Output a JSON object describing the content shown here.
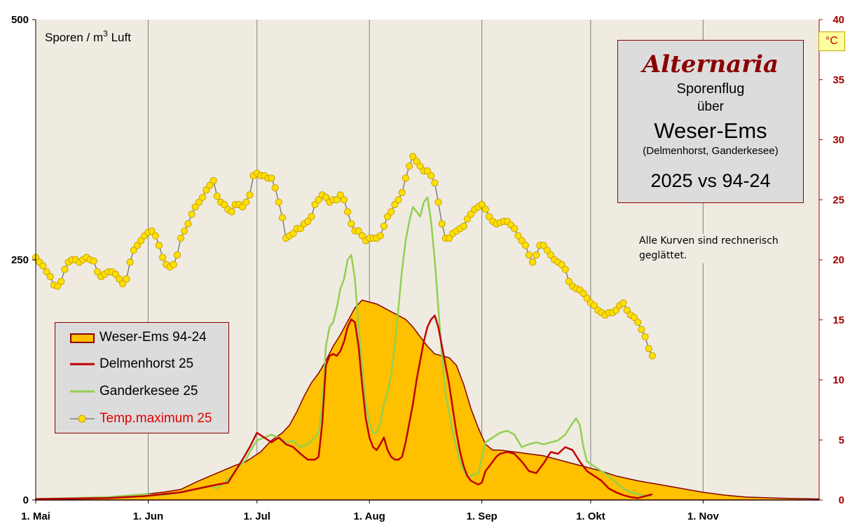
{
  "chart_data": {
    "type": "area",
    "y_unit_label": "Sporen / m",
    "y_unit_sup": "3",
    "y_unit_suffix": " Luft",
    "y2_unit_label": "°C",
    "ylim": [
      0,
      500
    ],
    "y_ticks": [
      "0",
      "250",
      "500"
    ],
    "y2lim": [
      0,
      40
    ],
    "y2_ticks": [
      "0",
      "5",
      "10",
      "15",
      "20",
      "25",
      "30",
      "35",
      "40"
    ],
    "x_tick_labels": [
      "1. Mai",
      "1. Jun",
      "1. Jul",
      "1. Aug",
      "1. Sep",
      "1. Okt",
      "1. Nov"
    ],
    "x_tick_days": [
      0,
      31,
      61,
      92,
      123,
      153,
      184
    ],
    "xlim_days": [
      0,
      216
    ],
    "grid": "vertical",
    "legend_placement": "left-middle",
    "title": "Alternaria",
    "subtitle_lines": [
      "Sporenflug",
      "über",
      "Weser-Ems",
      "(Delmenhorst,  Ganderkesee)",
      "2025 vs 94-24"
    ],
    "note_lines": [
      "Alle Kurven sind rechnerisch",
      "geglättet."
    ],
    "colors": {
      "area_fill": "#ffc000",
      "area_edge": "#8b0000",
      "delmenhorst": "#c00000",
      "ganderkesee": "#92d050",
      "temp_marker": "#ffe000",
      "temp_line": "#808080",
      "plot_bg": "#efebe1"
    },
    "series": [
      {
        "name": "Weser-Ems 94-24",
        "kind": "area",
        "points": [
          [
            0,
            1
          ],
          [
            10,
            1
          ],
          [
            20,
            2
          ],
          [
            25,
            4
          ],
          [
            30,
            6
          ],
          [
            35,
            8
          ],
          [
            40,
            11
          ],
          [
            45,
            20
          ],
          [
            50,
            28
          ],
          [
            55,
            36
          ],
          [
            58,
            40
          ],
          [
            62,
            50
          ],
          [
            65,
            62
          ],
          [
            68,
            70
          ],
          [
            70,
            78
          ],
          [
            72,
            92
          ],
          [
            74,
            108
          ],
          [
            76,
            122
          ],
          [
            78,
            132
          ],
          [
            80,
            145
          ],
          [
            82,
            160
          ],
          [
            84,
            172
          ],
          [
            86,
            186
          ],
          [
            88,
            200
          ],
          [
            90,
            208
          ],
          [
            92,
            206
          ],
          [
            94,
            204
          ],
          [
            96,
            200
          ],
          [
            98,
            196
          ],
          [
            100,
            192
          ],
          [
            102,
            188
          ],
          [
            104,
            180
          ],
          [
            106,
            170
          ],
          [
            108,
            160
          ],
          [
            110,
            152
          ],
          [
            112,
            150
          ],
          [
            114,
            148
          ],
          [
            116,
            140
          ],
          [
            118,
            120
          ],
          [
            120,
            95
          ],
          [
            122,
            75
          ],
          [
            124,
            58
          ],
          [
            126,
            52
          ],
          [
            128,
            52
          ],
          [
            132,
            50
          ],
          [
            136,
            48
          ],
          [
            140,
            46
          ],
          [
            144,
            42
          ],
          [
            148,
            38
          ],
          [
            152,
            34
          ],
          [
            156,
            30
          ],
          [
            160,
            25
          ],
          [
            166,
            20
          ],
          [
            172,
            16
          ],
          [
            178,
            12
          ],
          [
            184,
            8
          ],
          [
            190,
            5
          ],
          [
            196,
            3
          ],
          [
            204,
            2
          ],
          [
            216,
            1
          ]
        ]
      },
      {
        "name": "Delmenhorst 25",
        "kind": "line",
        "points": [
          [
            0,
            1
          ],
          [
            20,
            2
          ],
          [
            30,
            4
          ],
          [
            40,
            8
          ],
          [
            45,
            12
          ],
          [
            50,
            16
          ],
          [
            53,
            18
          ],
          [
            55,
            30
          ],
          [
            57,
            42
          ],
          [
            59,
            55
          ],
          [
            61,
            70
          ],
          [
            63,
            65
          ],
          [
            65,
            60
          ],
          [
            67,
            65
          ],
          [
            69,
            58
          ],
          [
            71,
            55
          ],
          [
            73,
            48
          ],
          [
            75,
            42
          ],
          [
            77,
            42
          ],
          [
            78,
            45
          ],
          [
            79,
            80
          ],
          [
            80,
            140
          ],
          [
            81,
            150
          ],
          [
            82,
            152
          ],
          [
            83,
            150
          ],
          [
            84,
            155
          ],
          [
            85,
            165
          ],
          [
            86,
            180
          ],
          [
            87,
            188
          ],
          [
            88,
            185
          ],
          [
            89,
            160
          ],
          [
            90,
            120
          ],
          [
            91,
            85
          ],
          [
            92,
            65
          ],
          [
            93,
            55
          ],
          [
            94,
            52
          ],
          [
            95,
            58
          ],
          [
            96,
            65
          ],
          [
            97,
            52
          ],
          [
            98,
            45
          ],
          [
            99,
            42
          ],
          [
            100,
            42
          ],
          [
            101,
            45
          ],
          [
            102,
            60
          ],
          [
            103,
            80
          ],
          [
            104,
            100
          ],
          [
            105,
            125
          ],
          [
            106,
            145
          ],
          [
            107,
            165
          ],
          [
            108,
            180
          ],
          [
            109,
            188
          ],
          [
            110,
            192
          ],
          [
            111,
            180
          ],
          [
            112,
            160
          ],
          [
            113,
            140
          ],
          [
            114,
            120
          ],
          [
            115,
            95
          ],
          [
            116,
            70
          ],
          [
            117,
            50
          ],
          [
            118,
            35
          ],
          [
            119,
            25
          ],
          [
            120,
            20
          ],
          [
            121,
            18
          ],
          [
            122,
            16
          ],
          [
            123,
            18
          ],
          [
            124,
            30
          ],
          [
            125,
            35
          ],
          [
            126,
            40
          ],
          [
            127,
            45
          ],
          [
            128,
            48
          ],
          [
            130,
            50
          ],
          [
            132,
            48
          ],
          [
            134,
            40
          ],
          [
            136,
            30
          ],
          [
            138,
            28
          ],
          [
            140,
            38
          ],
          [
            142,
            50
          ],
          [
            144,
            48
          ],
          [
            146,
            55
          ],
          [
            148,
            52
          ],
          [
            150,
            40
          ],
          [
            152,
            30
          ],
          [
            154,
            25
          ],
          [
            156,
            20
          ],
          [
            158,
            12
          ],
          [
            160,
            8
          ],
          [
            162,
            5
          ],
          [
            164,
            3
          ],
          [
            166,
            2
          ],
          [
            168,
            4
          ],
          [
            170,
            6
          ]
        ]
      },
      {
        "name": "Ganderkesee 25",
        "kind": "line",
        "points": [
          [
            0,
            1
          ],
          [
            20,
            3
          ],
          [
            30,
            6
          ],
          [
            35,
            5
          ],
          [
            40,
            8
          ],
          [
            45,
            12
          ],
          [
            48,
            15
          ],
          [
            50,
            12
          ],
          [
            52,
            18
          ],
          [
            54,
            25
          ],
          [
            56,
            35
          ],
          [
            58,
            42
          ],
          [
            59,
            50
          ],
          [
            61,
            62
          ],
          [
            63,
            65
          ],
          [
            65,
            68
          ],
          [
            67,
            65
          ],
          [
            69,
            60
          ],
          [
            71,
            62
          ],
          [
            73,
            55
          ],
          [
            75,
            58
          ],
          [
            77,
            65
          ],
          [
            78,
            70
          ],
          [
            79,
            100
          ],
          [
            80,
            160
          ],
          [
            81,
            180
          ],
          [
            82,
            185
          ],
          [
            83,
            200
          ],
          [
            84,
            220
          ],
          [
            85,
            230
          ],
          [
            86,
            250
          ],
          [
            87,
            255
          ],
          [
            88,
            230
          ],
          [
            89,
            180
          ],
          [
            90,
            140
          ],
          [
            91,
            100
          ],
          [
            92,
            80
          ],
          [
            93,
            70
          ],
          [
            94,
            70
          ],
          [
            95,
            80
          ],
          [
            96,
            100
          ],
          [
            97,
            112
          ],
          [
            98,
            130
          ],
          [
            99,
            160
          ],
          [
            100,
            200
          ],
          [
            101,
            240
          ],
          [
            102,
            270
          ],
          [
            103,
            290
          ],
          [
            104,
            305
          ],
          [
            105,
            300
          ],
          [
            106,
            295
          ],
          [
            107,
            310
          ],
          [
            108,
            315
          ],
          [
            109,
            290
          ],
          [
            110,
            250
          ],
          [
            111,
            200
          ],
          [
            112,
            150
          ],
          [
            113,
            110
          ],
          [
            114,
            90
          ],
          [
            115,
            70
          ],
          [
            116,
            55
          ],
          [
            117,
            40
          ],
          [
            118,
            30
          ],
          [
            119,
            25
          ],
          [
            120,
            25
          ],
          [
            122,
            28
          ],
          [
            124,
            60
          ],
          [
            126,
            65
          ],
          [
            128,
            70
          ],
          [
            130,
            72
          ],
          [
            132,
            68
          ],
          [
            134,
            55
          ],
          [
            136,
            58
          ],
          [
            138,
            60
          ],
          [
            140,
            58
          ],
          [
            142,
            60
          ],
          [
            144,
            62
          ],
          [
            146,
            68
          ],
          [
            148,
            80
          ],
          [
            149,
            85
          ],
          [
            150,
            78
          ],
          [
            151,
            55
          ],
          [
            152,
            40
          ],
          [
            154,
            35
          ],
          [
            156,
            30
          ],
          [
            158,
            25
          ],
          [
            160,
            18
          ],
          [
            162,
            12
          ],
          [
            164,
            8
          ],
          [
            166,
            6
          ],
          [
            168,
            4
          ],
          [
            170,
            5
          ]
        ]
      },
      {
        "name": "Temp.maximum 25",
        "kind": "line-marker",
        "axis": "y2",
        "values": [
          20.2,
          19.8,
          19.5,
          19.0,
          18.6,
          17.9,
          17.8,
          18.2,
          19.2,
          19.8,
          20.0,
          20.0,
          19.8,
          20.0,
          20.2,
          20.0,
          19.9,
          19.0,
          18.6,
          18.8,
          19.0,
          19.0,
          18.8,
          18.4,
          18.0,
          18.4,
          19.8,
          20.8,
          21.2,
          21.6,
          22.0,
          22.3,
          22.4,
          22.0,
          21.2,
          20.2,
          19.6,
          19.4,
          19.6,
          20.4,
          21.8,
          22.4,
          23.0,
          23.8,
          24.4,
          24.8,
          25.2,
          25.8,
          26.2,
          26.6,
          25.3,
          24.8,
          24.6,
          24.2,
          24.0,
          24.6,
          24.6,
          24.4,
          24.8,
          25.4,
          27.0,
          27.2,
          27.0,
          27.0,
          26.8,
          26.8,
          26.0,
          24.8,
          23.5,
          21.8,
          22.0,
          22.2,
          22.6,
          22.6,
          23.0,
          23.2,
          23.6,
          24.6,
          25.0,
          25.4,
          25.2,
          24.8,
          25.0,
          25.0,
          25.4,
          25.0,
          24.0,
          23.0,
          22.4,
          22.4,
          22.0,
          21.6,
          21.8,
          21.8,
          21.8,
          22.0,
          22.8,
          23.6,
          24.0,
          24.6,
          25.0,
          25.6,
          26.8,
          27.8,
          28.6,
          28.2,
          27.8,
          27.4,
          27.4,
          27.0,
          26.4,
          24.8,
          23.0,
          21.8,
          21.8,
          22.2,
          22.4,
          22.6,
          22.8,
          23.4,
          23.8,
          24.2,
          24.4,
          24.6,
          24.2,
          23.6,
          23.2,
          23.0,
          23.1,
          23.2,
          23.2,
          22.9,
          22.6,
          22.0,
          21.6,
          21.2,
          20.4,
          19.8,
          20.4,
          21.2,
          21.2,
          20.8,
          20.4,
          20.0,
          19.8,
          19.6,
          19.2,
          18.2,
          17.8,
          17.6,
          17.5,
          17.2,
          16.8,
          16.4,
          16.2,
          15.8,
          15.6,
          15.4,
          15.6,
          15.6,
          15.8,
          16.2,
          16.4,
          15.8,
          15.4,
          15.2,
          14.8,
          14.2,
          13.6,
          12.6,
          12.0
        ]
      }
    ]
  }
}
